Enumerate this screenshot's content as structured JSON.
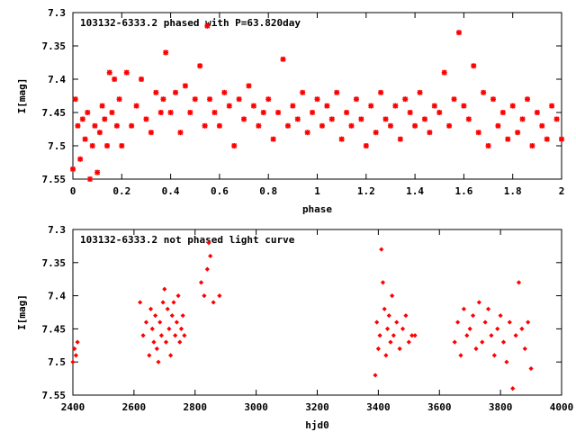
{
  "chart_data": [
    {
      "type": "scatter",
      "title": "103132-6333.2 phased with P=63.820day",
      "xlabel": "phase",
      "ylabel": "I[mag]",
      "xlim": [
        0,
        2
      ],
      "ylim": [
        7.55,
        7.3
      ],
      "y_inverted": true,
      "x_ticks": [
        0,
        0.2,
        0.4,
        0.6,
        0.8,
        1,
        1.2,
        1.4,
        1.6,
        1.8,
        2
      ],
      "x_tick_labels": [
        "0",
        "0.2",
        "0.4",
        "0.6",
        "0.8",
        "1",
        "1.2",
        "1.4",
        "1.6",
        "1.8",
        "2"
      ],
      "y_ticks": [
        7.3,
        7.35,
        7.4,
        7.45,
        7.5,
        7.55
      ],
      "y_tick_labels": [
        "7.3",
        "7.35",
        "7.4",
        "7.45",
        "7.5",
        "7.55"
      ],
      "grid": false,
      "marker_color": "#ff0000",
      "marker_shape": "asterisk",
      "series": [
        {
          "x": [
            0.0,
            0.01,
            0.02,
            0.03,
            0.04,
            0.05,
            0.06,
            0.07,
            0.08,
            0.09,
            0.1,
            0.11,
            0.12,
            0.13,
            0.14,
            0.15,
            0.16,
            0.17,
            0.18,
            0.19,
            0.2,
            0.22,
            0.24,
            0.26,
            0.28,
            0.3,
            0.32,
            0.34,
            0.36,
            0.37,
            0.38,
            0.4,
            0.42,
            0.44,
            0.46,
            0.48,
            0.5,
            0.52,
            0.54,
            0.55,
            0.56,
            0.58,
            0.6,
            0.62,
            0.64,
            0.66,
            0.68,
            0.7,
            0.72,
            0.74,
            0.76,
            0.78,
            0.8,
            0.82,
            0.84,
            0.86,
            0.88,
            0.9,
            0.92,
            0.94,
            0.96,
            0.98,
            1.0,
            1.02,
            1.04,
            1.06,
            1.08,
            1.1,
            1.12,
            1.14,
            1.16,
            1.18,
            1.2,
            1.22,
            1.24,
            1.26,
            1.28,
            1.3,
            1.32,
            1.34,
            1.36,
            1.38,
            1.4,
            1.42,
            1.44,
            1.46,
            1.48,
            1.5,
            1.52,
            1.54,
            1.56,
            1.58,
            1.6,
            1.62,
            1.64,
            1.66,
            1.68,
            1.7,
            1.72,
            1.74,
            1.76,
            1.78,
            1.8,
            1.82,
            1.84,
            1.86,
            1.88,
            1.9,
            1.92,
            1.94,
            1.96,
            1.98,
            2.0
          ],
          "y": [
            7.535,
            7.43,
            7.47,
            7.52,
            7.46,
            7.49,
            7.45,
            7.55,
            7.5,
            7.47,
            7.54,
            7.48,
            7.44,
            7.46,
            7.5,
            7.39,
            7.45,
            7.4,
            7.47,
            7.43,
            7.5,
            7.39,
            7.47,
            7.44,
            7.4,
            7.46,
            7.48,
            7.42,
            7.45,
            7.43,
            7.36,
            7.45,
            7.42,
            7.48,
            7.41,
            7.45,
            7.43,
            7.38,
            7.47,
            7.32,
            7.43,
            7.45,
            7.47,
            7.42,
            7.44,
            7.5,
            7.43,
            7.46,
            7.41,
            7.44,
            7.47,
            7.45,
            7.43,
            7.49,
            7.45,
            7.37,
            7.47,
            7.44,
            7.46,
            7.42,
            7.48,
            7.45,
            7.43,
            7.47,
            7.44,
            7.46,
            7.42,
            7.49,
            7.45,
            7.47,
            7.43,
            7.46,
            7.5,
            7.44,
            7.48,
            7.42,
            7.46,
            7.47,
            7.44,
            7.49,
            7.43,
            7.45,
            7.47,
            7.42,
            7.46,
            7.48,
            7.44,
            7.45,
            7.39,
            7.47,
            7.43,
            7.33,
            7.44,
            7.46,
            7.38,
            7.48,
            7.42,
            7.5,
            7.43,
            7.47,
            7.45,
            7.49,
            7.44,
            7.48,
            7.46,
            7.43,
            7.5,
            7.45,
            7.47,
            7.49,
            7.44,
            7.46,
            7.49
          ]
        }
      ]
    },
    {
      "type": "scatter",
      "title": "103132-6333.2 not phased light curve",
      "xlabel": "hjd0",
      "ylabel": "I[mag]",
      "xlim": [
        2400,
        4000
      ],
      "ylim": [
        7.55,
        7.3
      ],
      "y_inverted": true,
      "x_ticks": [
        2400,
        2600,
        2800,
        3000,
        3200,
        3400,
        3600,
        3800,
        4000
      ],
      "x_tick_labels": [
        "2400",
        "2600",
        "2800",
        "3000",
        "3200",
        "3400",
        "3600",
        "3800",
        "4000"
      ],
      "y_ticks": [
        7.3,
        7.35,
        7.4,
        7.45,
        7.5,
        7.55
      ],
      "y_tick_labels": [
        "7.3",
        "7.35",
        "7.4",
        "7.45",
        "7.5",
        "7.55"
      ],
      "grid": false,
      "marker_color": "#ff0000",
      "marker_shape": "diamond",
      "series": [
        {
          "x": [
            2400,
            2405,
            2410,
            2415,
            2620,
            2630,
            2640,
            2650,
            2655,
            2660,
            2665,
            2670,
            2675,
            2680,
            2685,
            2690,
            2695,
            2700,
            2705,
            2710,
            2715,
            2720,
            2725,
            2730,
            2735,
            2740,
            2745,
            2750,
            2755,
            2760,
            2765,
            2820,
            2830,
            2840,
            2845,
            2850,
            2860,
            2880,
            3390,
            3395,
            3400,
            3405,
            3410,
            3415,
            3420,
            3425,
            3430,
            3435,
            3440,
            3445,
            3450,
            3460,
            3470,
            3480,
            3490,
            3500,
            3510,
            3520,
            3650,
            3660,
            3670,
            3680,
            3690,
            3700,
            3710,
            3720,
            3730,
            3740,
            3750,
            3760,
            3770,
            3780,
            3790,
            3800,
            3810,
            3820,
            3830,
            3840,
            3850,
            3860,
            3870,
            3880,
            3890,
            3900
          ],
          "y": [
            7.5,
            7.48,
            7.49,
            7.47,
            7.41,
            7.46,
            7.44,
            7.49,
            7.42,
            7.45,
            7.47,
            7.43,
            7.48,
            7.5,
            7.44,
            7.46,
            7.41,
            7.39,
            7.47,
            7.42,
            7.45,
            7.49,
            7.43,
            7.41,
            7.46,
            7.44,
            7.4,
            7.47,
            7.45,
            7.43,
            7.46,
            7.38,
            7.4,
            7.36,
            7.32,
            7.34,
            7.41,
            7.4,
            7.52,
            7.44,
            7.48,
            7.46,
            7.33,
            7.38,
            7.42,
            7.49,
            7.45,
            7.43,
            7.47,
            7.4,
            7.46,
            7.44,
            7.48,
            7.45,
            7.43,
            7.47,
            7.46,
            7.46,
            7.47,
            7.44,
            7.49,
            7.42,
            7.46,
            7.45,
            7.43,
            7.48,
            7.41,
            7.47,
            7.44,
            7.42,
            7.46,
            7.49,
            7.45,
            7.43,
            7.47,
            7.5,
            7.44,
            7.54,
            7.46,
            7.38,
            7.45,
            7.48,
            7.44,
            7.51
          ]
        }
      ]
    }
  ]
}
